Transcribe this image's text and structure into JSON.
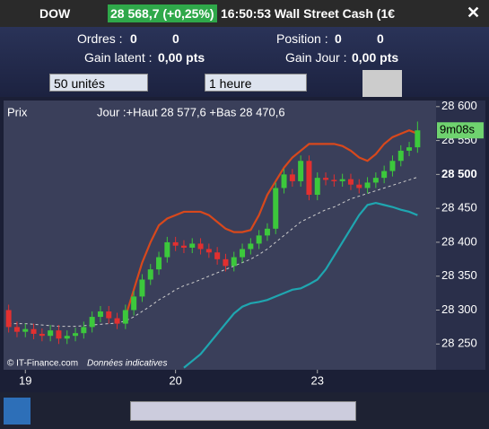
{
  "toolbar": {
    "symbol": "DOW",
    "price": "28 568,7 (+0,25%)",
    "time_title": "16:50:53 Wall Street Cash (1€"
  },
  "orders": {
    "label": "Ordres :",
    "value1": "0",
    "value2": "0"
  },
  "position": {
    "label": "Position :",
    "value1": "0",
    "value2": "0"
  },
  "gain_latent": {
    "label": "Gain latent :",
    "value": "0,00 pts"
  },
  "gain_jour": {
    "label": "Gain Jour :",
    "value": "0,00 pts"
  },
  "selectors": {
    "units": "50 unités",
    "period": "1 heure"
  },
  "chart_header": {
    "label": "Prix",
    "info": "Jour :+Haut 28 577,6 +Bas 28 470,6"
  },
  "footer": {
    "copyright": "© IT-Finance.com",
    "note": "Données indicatives"
  },
  "countdown": "9m08s",
  "chart_data": {
    "type": "candlestick",
    "categories": [
      null,
      null,
      "19",
      null,
      null,
      null,
      null,
      null,
      null,
      null,
      null,
      null,
      null,
      null,
      null,
      null,
      null,
      null,
      null,
      null,
      "20",
      null,
      null,
      null,
      null,
      null,
      null,
      null,
      null,
      null,
      null,
      null,
      null,
      null,
      null,
      null,
      null,
      "23",
      null,
      null,
      null,
      null,
      null,
      null,
      null,
      null,
      null,
      null,
      null,
      null
    ],
    "open": [
      28300,
      28275,
      28268,
      28272,
      28265,
      28262,
      28270,
      28258,
      28262,
      28266,
      28275,
      28290,
      28298,
      28288,
      28280,
      28300,
      28320,
      28345,
      28360,
      28378,
      28400,
      28395,
      28392,
      28398,
      28390,
      28385,
      28375,
      28365,
      28378,
      28390,
      28398,
      28410,
      28420,
      28480,
      28500,
      28490,
      28520,
      28470,
      28495,
      28492,
      28490,
      28493,
      28485,
      28480,
      28488,
      28495,
      28505,
      28520,
      28535,
      28540
    ],
    "high": [
      28308,
      28283,
      28280,
      28280,
      28273,
      28278,
      28278,
      28270,
      28274,
      28283,
      28298,
      28306,
      28306,
      28296,
      28308,
      28328,
      28353,
      28368,
      28386,
      28408,
      28408,
      28403,
      28406,
      28406,
      28398,
      28393,
      28383,
      28386,
      28398,
      28406,
      28418,
      28428,
      28488,
      28508,
      28508,
      28528,
      28528,
      28503,
      28503,
      28500,
      28501,
      28501,
      28493,
      28496,
      28503,
      28513,
      28528,
      28543,
      28548,
      28578
    ],
    "low": [
      28267,
      28260,
      28260,
      28257,
      28254,
      28254,
      28250,
      28250,
      28254,
      28258,
      28267,
      28282,
      28280,
      28272,
      28272,
      28292,
      28312,
      28337,
      28352,
      28370,
      28387,
      28384,
      28384,
      28382,
      28377,
      28367,
      28357,
      28357,
      28370,
      28382,
      28390,
      28402,
      28412,
      28472,
      28482,
      28482,
      28462,
      28462,
      28484,
      28482,
      28482,
      28477,
      28472,
      28472,
      28480,
      28487,
      28497,
      28512,
      28527,
      28532
    ],
    "close": [
      28275,
      28268,
      28272,
      28265,
      28262,
      28270,
      28258,
      28262,
      28266,
      28275,
      28290,
      28298,
      28288,
      28280,
      28300,
      28320,
      28345,
      28360,
      28378,
      28400,
      28395,
      28392,
      28398,
      28390,
      28385,
      28375,
      28365,
      28378,
      28390,
      28398,
      28410,
      28420,
      28480,
      28500,
      28490,
      28520,
      28470,
      28495,
      28492,
      28490,
      28493,
      28485,
      28480,
      28488,
      28495,
      28505,
      28520,
      28535,
      28540,
      28565
    ],
    "up_color": "#3cc83c",
    "down_color": "#e23030",
    "bands": [
      {
        "color": "#d8481c",
        "values": [
          null,
          null,
          null,
          null,
          null,
          null,
          null,
          null,
          null,
          null,
          null,
          null,
          null,
          null,
          28290,
          28330,
          28370,
          28400,
          28425,
          28435,
          28440,
          28445,
          28445,
          28445,
          28440,
          28430,
          28420,
          28415,
          28415,
          28418,
          28440,
          28470,
          28490,
          28510,
          28525,
          28535,
          28545,
          28545,
          28545,
          28545,
          28542,
          28535,
          28525,
          28520,
          28530,
          28545,
          28555,
          28560,
          28565,
          28560
        ]
      },
      {
        "color": "#cccccc",
        "values": [
          28280,
          28280,
          28280,
          28279,
          28278,
          28277,
          28276,
          28276,
          28276,
          28277,
          28278,
          28279,
          28280,
          28281,
          28284,
          28290,
          28298,
          28306,
          28315,
          28322,
          28330,
          28336,
          28340,
          28345,
          28350,
          28355,
          28360,
          28365,
          28370,
          28375,
          28382,
          28390,
          28400,
          28410,
          28420,
          28430,
          28436,
          28442,
          28448,
          28452,
          28458,
          28464,
          28468,
          28472,
          28476,
          28480,
          28484,
          28488,
          28492,
          28496
        ]
      },
      {
        "color": "#1fa6b0",
        "values": [
          null,
          null,
          null,
          null,
          null,
          null,
          null,
          null,
          null,
          null,
          null,
          null,
          null,
          null,
          null,
          null,
          null,
          null,
          null,
          null,
          null,
          28215,
          28225,
          28235,
          28250,
          28265,
          28280,
          28295,
          28305,
          28310,
          28312,
          28315,
          28320,
          28325,
          28330,
          28332,
          28338,
          28345,
          28360,
          28380,
          28400,
          28420,
          28440,
          28455,
          28458,
          28455,
          28452,
          28448,
          28445,
          28440
        ]
      }
    ],
    "ylim": [
      28212,
      28609
    ],
    "yticks": [
      {
        "value": 28250,
        "label": "28 250"
      },
      {
        "value": 28300,
        "label": "28 300"
      },
      {
        "value": 28350,
        "label": "28 350"
      },
      {
        "value": 28400,
        "label": "28 400"
      },
      {
        "value": 28450,
        "label": "28 450"
      },
      {
        "value": 28500,
        "label": "28 500"
      },
      {
        "value": 28550,
        "label": "28 550"
      },
      {
        "value": 28600,
        "label": "28 600"
      }
    ]
  }
}
